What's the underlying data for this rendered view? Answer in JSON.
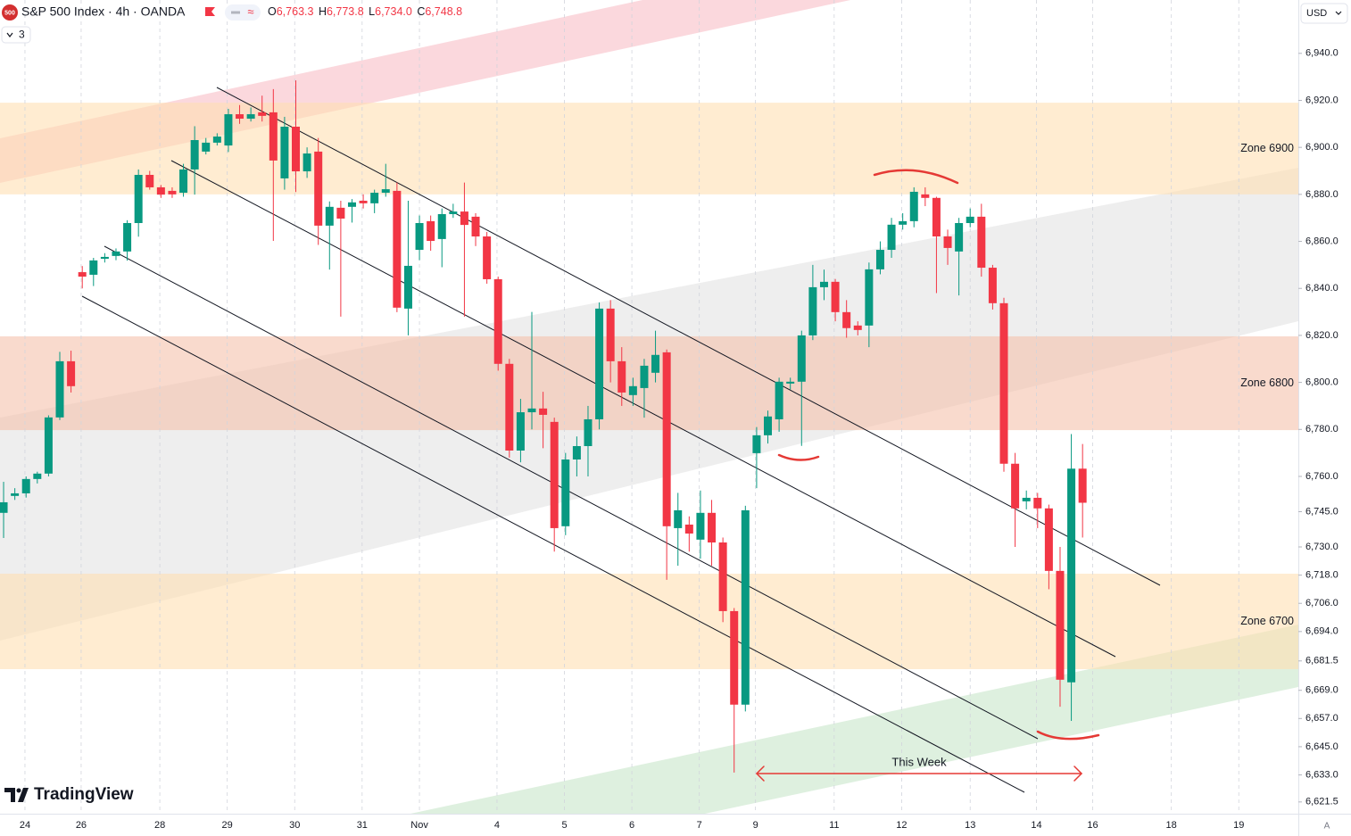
{
  "header": {
    "logo": "500",
    "symbol": "S&P 500 Index · 4h · OANDA",
    "ohlc": [
      {
        "key": "O",
        "value": "6,763.3"
      },
      {
        "key": "H",
        "value": "6,773.8"
      },
      {
        "key": "L",
        "value": "6,734.0"
      },
      {
        "key": "C",
        "value": "6,748.8"
      }
    ],
    "indicators": "3",
    "currency": "USD",
    "brand": "TradingView",
    "corner": "A"
  },
  "chart_data": {
    "type": "candlestick",
    "x": [
      0,
      1,
      2,
      3,
      4,
      5,
      6,
      7,
      8,
      9,
      10,
      11,
      12,
      13,
      14,
      15,
      16,
      17,
      18,
      19,
      20,
      21,
      22,
      23,
      24,
      25,
      26,
      27,
      28,
      29,
      30,
      31,
      32,
      33,
      34,
      35,
      36,
      37,
      38,
      39,
      40,
      41,
      42,
      43,
      44,
      45,
      46,
      47,
      48,
      49,
      50,
      51,
      52,
      53,
      54,
      55,
      56,
      57,
      58,
      59,
      60,
      61,
      62,
      63,
      64,
      65,
      66,
      67,
      68,
      69,
      70,
      71,
      72,
      73,
      74,
      75,
      76,
      77,
      78,
      79,
      80,
      81,
      82,
      83,
      84,
      85,
      86,
      87,
      88,
      89,
      90,
      91,
      92,
      93,
      94,
      95,
      96
    ],
    "open": [
      6744.5,
      6751.7,
      6752.8,
      6758.9,
      6761.2,
      6785.1,
      6809,
      6846.9,
      6845.8,
      6852.6,
      6853.8,
      6855.7,
      6867.8,
      6888.3,
      6883,
      6881.5,
      6880.7,
      6890.6,
      6898.2,
      6902,
      6900.8,
      6914.1,
      6912.2,
      6914.9,
      6914.9,
      6886.8,
      6908.8,
      6889.8,
      6898.2,
      6866.7,
      6874.3,
      6874.7,
      6877.3,
      6876.2,
      6880.7,
      6881.5,
      6831.4,
      6856.4,
      6868.6,
      6861,
      6871.6,
      6872.7,
      6870.5,
      6862.1,
      6843.9,
      6807.9,
      6771,
      6787.3,
      6788.9,
      6783.2,
      6738.8,
      6767.2,
      6772.9,
      6784.3,
      6831.4,
      6809,
      6794.6,
      6797.6,
      6804.1,
      6812.8,
      6738,
      6739.5,
      6733.1,
      6744.5,
      6731.9,
      6702.7,
      6662.9,
      6769.9,
      6777.5,
      6784.3,
      6799.5,
      6800.3,
      6820,
      6840.5,
      6842.8,
      6829.9,
      6824.2,
      6824.2,
      6848.1,
      6856.4,
      6867.1,
      6868.6,
      6880,
      6878.5,
      6862.1,
      6855.7,
      6867.8,
      6870.5,
      6848.8,
      6833.7,
      6765.4,
      6749.4,
      6750.9,
      6746.4,
      6719.8,
      6672.4,
      6763.3
    ],
    "high": [
      6757.7,
      6755,
      6760,
      6762,
      6786,
      6813,
      6813.5,
      6849.5,
      6853,
      6855,
      6857,
      6869,
      6890.6,
      6890,
      6884,
      6883,
      6893,
      6909,
      6904,
      6906,
      6916.4,
      6918,
      6917,
      6922,
      6924.8,
      6913,
      6928.5,
      6900,
      6904,
      6877,
      6877.3,
      6878,
      6880,
      6882,
      6893,
      6885,
      6877.3,
      6871,
      6871,
      6874,
      6876,
      6885,
      6872,
      6864,
      6845,
      6810,
      6793,
      6830,
      6796,
      6785,
      6770,
      6777,
      6790,
      6834,
      6835,
      6815,
      6802,
      6810,
      6822,
      6814,
      6753,
      6743,
      6754,
      6750,
      6734,
      6704,
      6747.5,
      6781,
      6788,
      6802,
      6802,
      6822,
      6850,
      6848,
      6844,
      6835,
      6826,
      6851,
      6860,
      6870,
      6872,
      6883,
      6883,
      6879,
      6865,
      6870,
      6874,
      6876,
      6850,
      6836,
      6770,
      6754,
      6753,
      6748,
      6730,
      6778,
      6773.8
    ],
    "low": [
      6733.8,
      6750,
      6751,
      6757,
      6760,
      6784,
      6795.7,
      6840,
      6841,
      6851,
      6852,
      6851.8,
      6862,
      6882,
      6878.5,
      6878.5,
      6879,
      6879.9,
      6897,
      6900.8,
      6898,
      6910,
      6911,
      6911,
      6860.2,
      6882,
      6881,
      6887,
      6858.5,
      6848,
      6828,
      6868,
      6874,
      6872,
      6879,
      6829.9,
      6820,
      6852,
      6856,
      6849,
      6870,
      6828,
      6858,
      6842,
      6805,
      6768,
      6766,
      6780,
      6772,
      6728,
      6735,
      6760,
      6760,
      6780,
      6800,
      6790,
      6790,
      6785,
      6800,
      6716,
      6722,
      6728,
      6725,
      6722,
      6698,
      6634,
      6660,
      6755,
      6774,
      6779,
      6797,
      6773,
      6818,
      6835,
      6826,
      6819,
      6820,
      6815,
      6846,
      6853,
      6865,
      6866,
      6875,
      6838,
      6850,
      6837,
      6866,
      6845,
      6831,
      6762,
      6730,
      6746,
      6738,
      6712,
      6662,
      6656,
      6734
    ],
    "close": [
      6749,
      6752.8,
      6758.9,
      6761.2,
      6785.1,
      6809,
      6798.4,
      6845,
      6851.9,
      6853.4,
      6855.7,
      6867.8,
      6888.3,
      6883,
      6879.9,
      6880,
      6890.6,
      6903.1,
      6902,
      6904.6,
      6914.1,
      6912.2,
      6914.1,
      6913.4,
      6894.4,
      6908.8,
      6889.8,
      6897.4,
      6866.7,
      6874.7,
      6869.7,
      6876.6,
      6876.2,
      6880.7,
      6882.2,
      6831.8,
      6849.6,
      6867.8,
      6860.2,
      6871.6,
      6872.7,
      6867,
      6862.1,
      6843.9,
      6807.9,
      6771,
      6787.3,
      6788.9,
      6786.2,
      6738,
      6767.2,
      6772.9,
      6784.3,
      6831.4,
      6809,
      6795.7,
      6798.4,
      6807.1,
      6811.7,
      6738.8,
      6745.6,
      6735.7,
      6744.5,
      6731.9,
      6702.7,
      6662.9,
      6745.6,
      6777.5,
      6785.5,
      6800.3,
      6800.3,
      6820,
      6840.5,
      6842.8,
      6829.9,
      6823.1,
      6822.3,
      6848.1,
      6856.4,
      6867.1,
      6868.6,
      6881.1,
      6878.5,
      6862.1,
      6857.2,
      6867.8,
      6870.5,
      6848.8,
      6833.7,
      6765.4,
      6746.4,
      6750.9,
      6746.4,
      6719.8,
      6673.5,
      6763.3,
      6748.8
    ],
    "up_color": "#089981",
    "down_color": "#f23645",
    "ylim": [
      6616.5,
      6962.7
    ],
    "yticks": [
      {
        "value": 6940,
        "label": "6,940.0"
      },
      {
        "value": 6920,
        "label": "6,920.0"
      },
      {
        "value": 6900,
        "label": "6,900.0"
      },
      {
        "value": 6880,
        "label": "6,880.0"
      },
      {
        "value": 6860,
        "label": "6,860.0"
      },
      {
        "value": 6840,
        "label": "6,840.0"
      },
      {
        "value": 6820,
        "label": "6,820.0"
      },
      {
        "value": 6800,
        "label": "6,800.0"
      },
      {
        "value": 6780,
        "label": "6,780.0"
      },
      {
        "value": 6760,
        "label": "6,760.0"
      },
      {
        "value": 6745,
        "label": "6,745.0"
      },
      {
        "value": 6730,
        "label": "6,730.0"
      },
      {
        "value": 6718,
        "label": "6,718.0"
      },
      {
        "value": 6706,
        "label": "6,706.0"
      },
      {
        "value": 6694,
        "label": "6,694.0"
      },
      {
        "value": 6681.5,
        "label": "6,681.5"
      },
      {
        "value": 6669,
        "label": "6,669.0"
      },
      {
        "value": 6657,
        "label": "6,657.0"
      },
      {
        "value": 6645,
        "label": "6,645.0"
      },
      {
        "value": 6633,
        "label": "6,633.0"
      },
      {
        "value": 6621.5,
        "label": "6,621.5"
      }
    ],
    "xlim": [
      -0.32,
      115.2
    ],
    "xticks": [
      {
        "value": 1.9,
        "label": "24"
      },
      {
        "value": 6.9,
        "label": "26"
      },
      {
        "value": 13.9,
        "label": "28"
      },
      {
        "value": 19.9,
        "label": "29"
      },
      {
        "value": 25.9,
        "label": "30"
      },
      {
        "value": 31.9,
        "label": "31"
      },
      {
        "value": 37,
        "label": "Nov"
      },
      {
        "value": 43.9,
        "label": "4"
      },
      {
        "value": 49.9,
        "label": "5"
      },
      {
        "value": 55.9,
        "label": "6"
      },
      {
        "value": 61.9,
        "label": "7"
      },
      {
        "value": 66.9,
        "label": "9"
      },
      {
        "value": 73.9,
        "label": "11"
      },
      {
        "value": 79.9,
        "label": "12"
      },
      {
        "value": 86,
        "label": "13"
      },
      {
        "value": 91.9,
        "label": "14"
      },
      {
        "value": 96.9,
        "label": "16"
      },
      {
        "value": 103.9,
        "label": "18"
      },
      {
        "value": 109.9,
        "label": "19"
      }
    ],
    "grid": true,
    "zones": [
      {
        "label": "Zone 6900",
        "range": [
          6880,
          6919
        ],
        "color": "#ffe0b2"
      },
      {
        "label": "Zone 6800",
        "range": [
          6779.7,
          6819.6
        ],
        "color": "#f5c2ab"
      },
      {
        "label": "Zone 6700",
        "range": [
          6678,
          6718.6
        ],
        "color": "#ffe0b2"
      }
    ],
    "annotation": "This Week"
  }
}
